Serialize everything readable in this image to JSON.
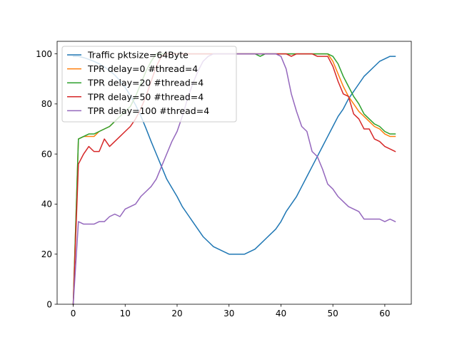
{
  "chart_data": {
    "type": "line",
    "title": "",
    "xlabel": "",
    "ylabel": "",
    "xlim": [
      -3.1,
      65.1
    ],
    "ylim": [
      0,
      105
    ],
    "xticks": [
      0,
      10,
      20,
      30,
      40,
      50,
      60
    ],
    "yticks": [
      0,
      20,
      40,
      60,
      80,
      100
    ],
    "grid": false,
    "legend_position": "upper-left",
    "series": [
      {
        "name": "Traffic pktsize=64Byte",
        "color": "#1f77b4",
        "x": [
          0,
          1,
          2,
          3,
          4,
          5,
          6,
          7,
          8,
          9,
          10,
          11,
          12,
          13,
          14,
          15,
          16,
          17,
          18,
          19,
          20,
          21,
          22,
          23,
          24,
          25,
          26,
          27,
          28,
          29,
          30,
          31,
          32,
          33,
          34,
          35,
          36,
          37,
          38,
          39,
          40,
          41,
          42,
          43,
          44,
          45,
          46,
          47,
          48,
          49,
          50,
          51,
          52,
          53,
          54,
          55,
          56,
          57,
          58,
          59,
          60,
          61,
          62
        ],
        "values": [
          99,
          99,
          98.5,
          97.8,
          97,
          96,
          94.8,
          93.3,
          91.5,
          89.3,
          86.6,
          83.3,
          79.6,
          75.3,
          70.3,
          65,
          60,
          55,
          50,
          46.5,
          43,
          39,
          36,
          33,
          30,
          27,
          25,
          23,
          22,
          21,
          20,
          20,
          20,
          20,
          21,
          22,
          24,
          26,
          28,
          30,
          33,
          37,
          40,
          43,
          47,
          51,
          55,
          59,
          63,
          67,
          71,
          75,
          78,
          82,
          85,
          88,
          91,
          93,
          95,
          97,
          98,
          99,
          99
        ]
      },
      {
        "name": "TPR delay=0 #thread=4",
        "color": "#ff7f0e",
        "x": [
          0,
          1,
          2,
          3,
          4,
          5,
          6,
          7,
          8,
          9,
          10,
          11,
          12,
          13,
          14,
          15,
          16,
          17,
          18,
          19,
          20,
          21,
          22,
          23,
          24,
          25,
          26,
          27,
          28,
          29,
          30,
          31,
          32,
          33,
          34,
          35,
          36,
          37,
          38,
          39,
          40,
          41,
          42,
          43,
          44,
          45,
          46,
          47,
          48,
          49,
          50,
          51,
          52,
          53,
          54,
          55,
          56,
          57,
          58,
          59,
          60,
          61,
          62
        ],
        "values": [
          0,
          66,
          67,
          67,
          67,
          69,
          70,
          71,
          73,
          75,
          77,
          79,
          83,
          88,
          93,
          97,
          100,
          100,
          100,
          100,
          100,
          100,
          100,
          100,
          100,
          100,
          100,
          100,
          100,
          100,
          100,
          100,
          100,
          100,
          100,
          100,
          100,
          100,
          100,
          100,
          100,
          100,
          100,
          100,
          100,
          100,
          100,
          100,
          100,
          100,
          97,
          92,
          87,
          83,
          80,
          77,
          75,
          73,
          71,
          70,
          68,
          67,
          67
        ]
      },
      {
        "name": "TPR delay=20 #thread=4",
        "color": "#2ca02c",
        "x": [
          0,
          1,
          2,
          3,
          4,
          5,
          6,
          7,
          8,
          9,
          10,
          11,
          12,
          13,
          14,
          15,
          16,
          17,
          18,
          19,
          20,
          21,
          22,
          23,
          24,
          25,
          26,
          27,
          28,
          29,
          30,
          31,
          32,
          33,
          34,
          35,
          36,
          37,
          38,
          39,
          40,
          41,
          42,
          43,
          44,
          45,
          46,
          47,
          48,
          49,
          50,
          51,
          52,
          53,
          54,
          55,
          56,
          57,
          58,
          59,
          60,
          61,
          62
        ],
        "values": [
          0,
          66,
          67,
          68,
          68,
          69,
          70,
          71,
          73,
          75,
          77,
          79,
          83,
          88,
          93,
          97,
          100,
          100,
          100,
          100,
          100,
          100,
          100,
          100,
          100,
          100,
          100,
          100,
          100,
          100,
          100,
          100,
          100,
          100,
          100,
          100,
          99,
          100,
          100,
          100,
          100,
          100,
          100,
          100,
          100,
          100,
          100,
          100,
          100,
          100,
          99,
          96,
          91,
          87,
          83,
          80,
          76,
          74,
          72,
          71,
          69,
          68,
          68
        ]
      },
      {
        "name": "TPR delay=50 #thread=4",
        "color": "#d62728",
        "x": [
          0,
          1,
          2,
          3,
          4,
          5,
          6,
          7,
          8,
          9,
          10,
          11,
          12,
          13,
          14,
          15,
          16,
          17,
          18,
          19,
          20,
          21,
          22,
          23,
          24,
          25,
          26,
          27,
          28,
          29,
          30,
          31,
          32,
          33,
          34,
          35,
          36,
          37,
          38,
          39,
          40,
          41,
          42,
          43,
          44,
          45,
          46,
          47,
          48,
          49,
          50,
          51,
          52,
          53,
          54,
          55,
          56,
          57,
          58,
          59,
          60,
          61,
          62
        ],
        "values": [
          0,
          56,
          60,
          63,
          61,
          61,
          66,
          63,
          65,
          67,
          69,
          71,
          74,
          78,
          83,
          89,
          95,
          99,
          100,
          100,
          100,
          100,
          100,
          100,
          100,
          100,
          100,
          100,
          100,
          100,
          100,
          100,
          100,
          100,
          100,
          100,
          100,
          100,
          100,
          100,
          100,
          100,
          99,
          100,
          100,
          100,
          100,
          99,
          99,
          99,
          95,
          89,
          84,
          83,
          76,
          74,
          70,
          70,
          66,
          65,
          63,
          62,
          61
        ]
      },
      {
        "name": "TPR delay=100 #thread=4",
        "color": "#9467bd",
        "x": [
          0,
          1,
          2,
          3,
          4,
          5,
          6,
          7,
          8,
          9,
          10,
          11,
          12,
          13,
          14,
          15,
          16,
          17,
          18,
          19,
          20,
          21,
          22,
          23,
          24,
          25,
          26,
          27,
          28,
          29,
          30,
          31,
          32,
          33,
          34,
          35,
          36,
          37,
          38,
          39,
          40,
          41,
          42,
          43,
          44,
          45,
          46,
          47,
          48,
          49,
          50,
          51,
          52,
          53,
          54,
          55,
          56,
          57,
          58,
          59,
          60,
          61,
          62
        ],
        "values": [
          0,
          33,
          32,
          32,
          32,
          33,
          33,
          35,
          36,
          35,
          38,
          39,
          40,
          43,
          45,
          47,
          50,
          55,
          60,
          65,
          69,
          75,
          82,
          88,
          93,
          97,
          99,
          100,
          100,
          100,
          100,
          100,
          100,
          100,
          100,
          100,
          100,
          100,
          100,
          100,
          99,
          94,
          84,
          77,
          71,
          69,
          61,
          59,
          54,
          48,
          46,
          43,
          41,
          39,
          38,
          37,
          34,
          34,
          34,
          34,
          33,
          34,
          33
        ]
      }
    ]
  }
}
